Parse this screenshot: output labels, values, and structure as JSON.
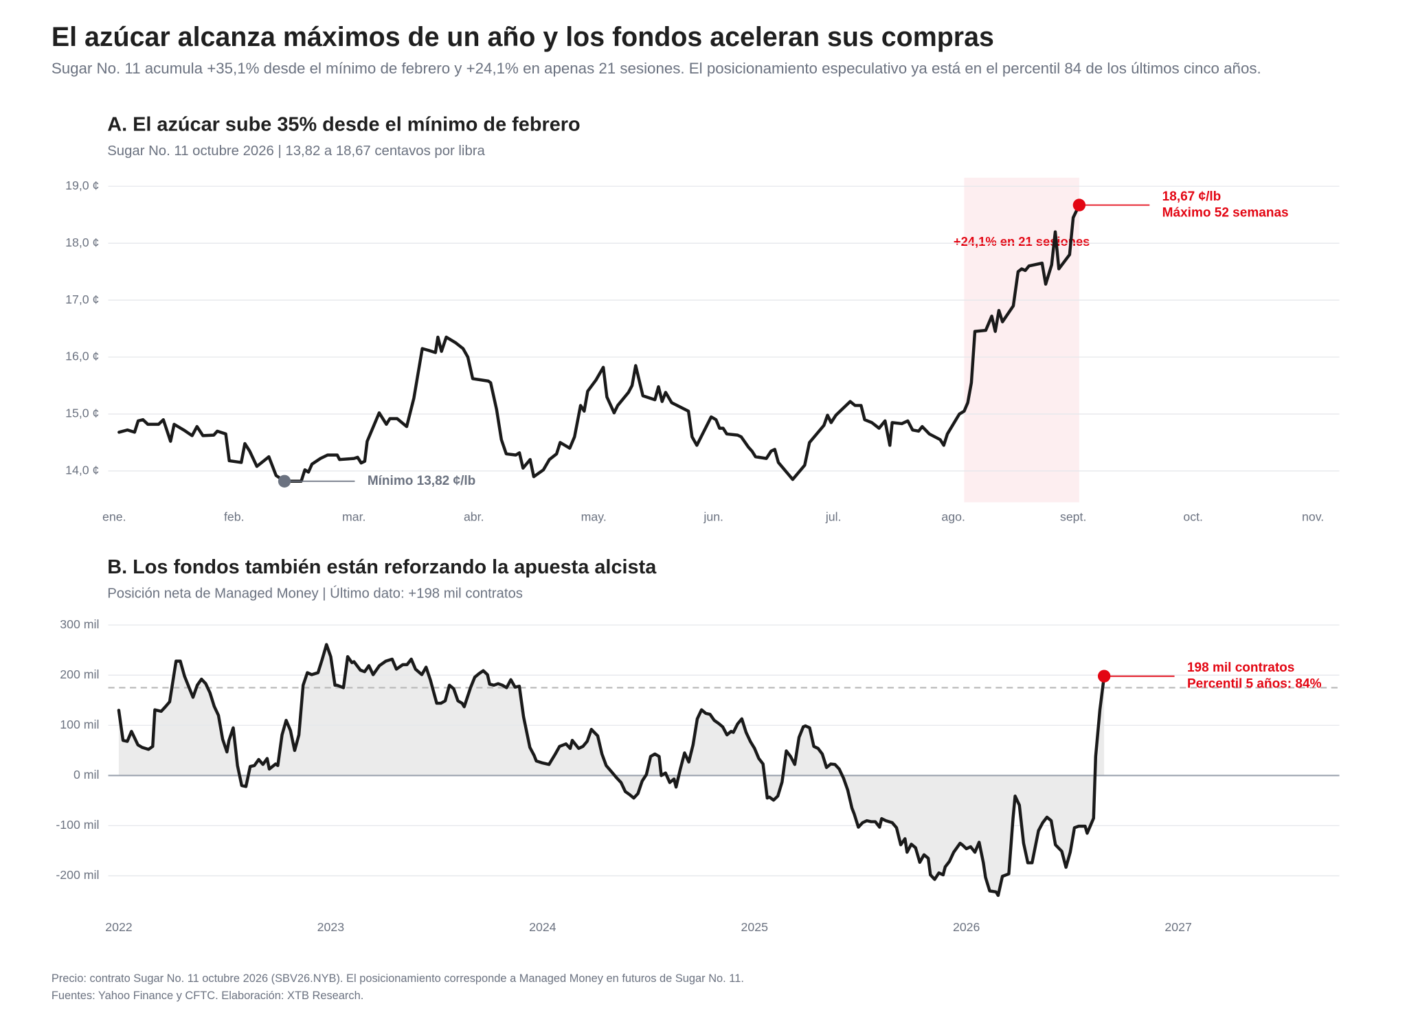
{
  "header": {
    "title": "El azúcar alcanza máximos de un año y los fondos aceleran sus compras",
    "subtitle": "Sugar No. 11 acumula +35,1% desde el mínimo de febrero y +24,1% en apenas 21 sesiones. El posicionamiento especulativo ya está en el percentil 84 de los últimos cinco años."
  },
  "footer": {
    "notes": [
      "Precio: contrato Sugar No. 11 octubre 2026 (SBV26.NYB). El posicionamiento corresponde a Managed Money en futuros de Sugar No. 11.",
      "Fuentes: Yahoo Finance y CFTC. Elaboración: XTB Research."
    ]
  },
  "chart_data": [
    {
      "type": "line",
      "title": "A. El azúcar sube 35% desde el mínimo de febrero",
      "subtitle": "Sugar No. 11 octubre 2026 | 13,82 a 18,67 centavos por libra",
      "color": "#1a1a1a",
      "grid": true,
      "xlim": [
        -0.05,
        10.22
      ],
      "xticks": [
        {
          "value": 0,
          "label": "ene."
        },
        {
          "value": 1,
          "label": "feb."
        },
        {
          "value": 2,
          "label": "mar."
        },
        {
          "value": 3,
          "label": "abr."
        },
        {
          "value": 4,
          "label": "may."
        },
        {
          "value": 5,
          "label": "jun."
        },
        {
          "value": 6,
          "label": "jul."
        },
        {
          "value": 7,
          "label": "ago."
        },
        {
          "value": 8,
          "label": "sept."
        },
        {
          "value": 9,
          "label": "oct."
        },
        {
          "value": 10,
          "label": "nov."
        }
      ],
      "ylim": [
        13.45,
        19.15
      ],
      "yticks": [
        {
          "value": 14,
          "label": "14,0 ¢"
        },
        {
          "value": 15,
          "label": "15,0 ¢"
        },
        {
          "value": 16,
          "label": "16,0 ¢"
        },
        {
          "value": 17,
          "label": "17,0 ¢"
        },
        {
          "value": 18,
          "label": "18,0 ¢"
        },
        {
          "value": 19,
          "label": "19,0 ¢"
        }
      ],
      "highlight": {
        "x": [
          7.09,
          8.05
        ],
        "color": "#fdeef0",
        "label": "+24,1% en 21 sesiones",
        "label_color": "#e30613"
      },
      "annotations": [
        {
          "x": 1.42,
          "y": 13.82,
          "color": "#6b7280",
          "label": [
            "Mínimo 13,82 ¢/lb"
          ]
        },
        {
          "x": 8.05,
          "y": 18.67,
          "color": "#e30613",
          "label": [
            "18,67 ¢/lb",
            "Máximo 52 semanas"
          ]
        }
      ],
      "x": [
        0.04,
        0.11,
        0.17,
        0.2,
        0.24,
        0.28,
        0.37,
        0.41,
        0.47,
        0.5,
        0.58,
        0.65,
        0.69,
        0.74,
        0.83,
        0.86,
        0.93,
        0.96,
        1.06,
        1.09,
        1.13,
        1.19,
        1.29,
        1.35,
        1.42,
        1.56,
        1.59,
        1.62,
        1.65,
        1.72,
        1.78,
        1.86,
        1.88,
        2.0,
        2.03,
        2.06,
        2.09,
        2.11,
        2.21,
        2.27,
        2.3,
        2.36,
        2.44,
        2.5,
        2.57,
        2.62,
        2.68,
        2.7,
        2.73,
        2.77,
        2.85,
        2.91,
        2.95,
        2.99,
        3.12,
        3.14,
        3.19,
        3.23,
        3.27,
        3.35,
        3.38,
        3.41,
        3.47,
        3.5,
        3.58,
        3.63,
        3.69,
        3.72,
        3.8,
        3.84,
        3.89,
        3.92,
        3.95,
        4.02,
        4.08,
        4.11,
        4.17,
        4.2,
        4.29,
        4.32,
        4.35,
        4.41,
        4.51,
        4.54,
        4.57,
        4.6,
        4.65,
        4.79,
        4.82,
        4.86,
        4.98,
        5.02,
        5.05,
        5.08,
        5.11,
        5.2,
        5.23,
        5.29,
        5.32,
        5.35,
        5.44,
        5.48,
        5.51,
        5.54,
        5.66,
        5.7,
        5.76,
        5.8,
        5.86,
        5.92,
        5.95,
        5.98,
        6.02,
        6.14,
        6.18,
        6.23,
        6.26,
        6.32,
        6.35,
        6.38,
        6.43,
        6.47,
        6.49,
        6.57,
        6.62,
        6.66,
        6.71,
        6.74,
        6.8,
        6.89,
        6.92,
        6.95,
        7.05,
        7.09,
        7.12,
        7.15,
        7.18,
        7.27,
        7.32,
        7.35,
        7.38,
        7.41,
        7.5,
        7.54,
        7.57,
        7.6,
        7.63,
        7.74,
        7.77,
        7.82,
        7.85,
        7.88,
        7.97,
        8.0,
        8.05
      ],
      "values": [
        14.68,
        14.72,
        14.68,
        14.88,
        14.9,
        14.82,
        14.82,
        14.9,
        14.52,
        14.82,
        14.72,
        14.62,
        14.78,
        14.62,
        14.63,
        14.7,
        14.65,
        14.18,
        14.15,
        14.48,
        14.35,
        14.08,
        14.25,
        13.92,
        13.82,
        13.82,
        14.02,
        13.98,
        14.12,
        14.22,
        14.28,
        14.28,
        14.2,
        14.22,
        14.24,
        14.14,
        14.17,
        14.52,
        15.02,
        14.82,
        14.92,
        14.92,
        14.78,
        15.28,
        16.15,
        16.12,
        16.08,
        16.35,
        16.1,
        16.35,
        16.25,
        16.15,
        16.0,
        15.62,
        15.58,
        15.55,
        15.08,
        14.55,
        14.3,
        14.28,
        14.32,
        14.05,
        14.2,
        13.9,
        14.02,
        14.2,
        14.3,
        14.5,
        14.4,
        14.6,
        15.15,
        15.05,
        15.4,
        15.6,
        15.82,
        15.3,
        15.02,
        15.15,
        15.38,
        15.5,
        15.85,
        15.32,
        15.25,
        15.48,
        15.22,
        15.38,
        15.2,
        15.05,
        14.6,
        14.45,
        14.95,
        14.9,
        14.75,
        14.75,
        14.65,
        14.63,
        14.6,
        14.42,
        14.35,
        14.25,
        14.22,
        14.35,
        14.38,
        14.15,
        13.85,
        13.95,
        14.1,
        14.5,
        14.65,
        14.8,
        14.98,
        14.85,
        14.98,
        15.22,
        15.15,
        15.15,
        14.9,
        14.85,
        14.8,
        14.75,
        14.88,
        14.45,
        14.85,
        14.83,
        14.88,
        14.72,
        14.7,
        14.78,
        14.65,
        14.55,
        14.45,
        14.65,
        15.0,
        15.05,
        15.2,
        15.55,
        16.45,
        16.47,
        16.72,
        16.45,
        16.82,
        16.62,
        16.9,
        17.5,
        17.55,
        17.52,
        17.6,
        17.65,
        17.28,
        17.62,
        18.2,
        17.55,
        17.8,
        18.45,
        18.67
      ]
    },
    {
      "type": "line",
      "title": "B. Los fondos también están reforzando la apuesta alcista",
      "subtitle": "Posición neta de Managed Money | Último dato: +198 mil contratos",
      "color": "#1a1a1a",
      "fill": "#ebebeb",
      "grid": true,
      "xlim": [
        2021.95,
        2027.76
      ],
      "xticks": [
        2022,
        2023,
        2024,
        2025,
        2026,
        2027
      ],
      "ylim": [
        -255,
        320
      ],
      "yticks": [
        {
          "value": -200,
          "label": "-200 mil"
        },
        {
          "value": -100,
          "label": "-100 mil"
        },
        {
          "value": 0,
          "label": "0 mil"
        },
        {
          "value": 100,
          "label": "100 mil"
        },
        {
          "value": 200,
          "label": "200 mil"
        },
        {
          "value": 300,
          "label": "300 mil"
        }
      ],
      "reference": {
        "y": 175,
        "color": "#b8b8b8"
      },
      "annotations": [
        {
          "x": 2026.65,
          "y": 198,
          "color": "#e30613",
          "label": [
            "198 mil contratos",
            "Percentil 5 años: 84%"
          ]
        }
      ],
      "x": [
        2022.0,
        2022.02,
        2022.04,
        2022.06,
        2022.09,
        2022.11,
        2022.14,
        2022.16,
        2022.17,
        2022.2,
        2022.22,
        2022.24,
        2022.27,
        2022.29,
        2022.31,
        2022.35,
        2022.37,
        2022.39,
        2022.41,
        2022.43,
        2022.45,
        2022.47,
        2022.49,
        2022.51,
        2022.52,
        2022.54,
        2022.56,
        2022.58,
        2022.6,
        2022.62,
        2022.64,
        2022.66,
        2022.68,
        2022.7,
        2022.71,
        2022.74,
        2022.75,
        2022.77,
        2022.79,
        2022.81,
        2022.83,
        2022.85,
        2022.87,
        2022.89,
        2022.91,
        2022.94,
        2022.96,
        2022.98,
        2023.0,
        2023.02,
        2023.03,
        2023.06,
        2023.08,
        2023.1,
        2023.11,
        2023.14,
        2023.16,
        2023.18,
        2023.2,
        2023.23,
        2023.26,
        2023.29,
        2023.31,
        2023.34,
        2023.36,
        2023.38,
        2023.4,
        2023.43,
        2023.45,
        2023.47,
        2023.5,
        2023.52,
        2023.54,
        2023.56,
        2023.58,
        2023.6,
        2023.62,
        2023.63,
        2023.66,
        2023.68,
        2023.7,
        2023.72,
        2023.74,
        2023.75,
        2023.77,
        2023.79,
        2023.81,
        2023.83,
        2023.85,
        2023.87,
        2023.89,
        2023.91,
        2023.94,
        2023.96,
        2023.97,
        2024.0,
        2024.03,
        2024.06,
        2024.08,
        2024.11,
        2024.13,
        2024.14,
        2024.17,
        2024.19,
        2024.21,
        2024.23,
        2024.26,
        2024.28,
        2024.3,
        2024.33,
        2024.35,
        2024.37,
        2024.39,
        2024.41,
        2024.43,
        2024.45,
        2024.47,
        2024.49,
        2024.51,
        2024.53,
        2024.55,
        2024.56,
        2024.58,
        2024.6,
        2024.62,
        2024.63,
        2024.65,
        2024.67,
        2024.69,
        2024.71,
        2024.73,
        2024.75,
        2024.77,
        2024.79,
        2024.81,
        2024.83,
        2024.85,
        2024.87,
        2024.89,
        2024.9,
        2024.92,
        2024.94,
        2024.96,
        2024.98,
        2025.0,
        2025.02,
        2025.04,
        2025.06,
        2025.07,
        2025.09,
        2025.11,
        2025.13,
        2025.15,
        2025.17,
        2025.19,
        2025.21,
        2025.23,
        2025.24,
        2025.26,
        2025.28,
        2025.3,
        2025.32,
        2025.34,
        2025.36,
        2025.38,
        2025.4,
        2025.42,
        2025.44,
        2025.46,
        2025.47,
        2025.49,
        2025.51,
        2025.53,
        2025.55,
        2025.57,
        2025.59,
        2025.6,
        2025.62,
        2025.65,
        2025.67,
        2025.69,
        2025.71,
        2025.72,
        2025.74,
        2025.76,
        2025.78,
        2025.8,
        2025.82,
        2025.83,
        2025.85,
        2025.87,
        2025.89,
        2025.9,
        2025.92,
        2025.94,
        2025.97,
        2025.98,
        2026.0,
        2026.02,
        2026.04,
        2026.06,
        2026.08,
        2026.09,
        2026.11,
        2026.14,
        2026.15,
        2026.17,
        2026.2,
        2026.22,
        2026.23,
        2026.25,
        2026.27,
        2026.29,
        2026.31,
        2026.34,
        2026.36,
        2026.38,
        2026.4,
        2026.42,
        2026.45,
        2026.47,
        2026.49,
        2026.51,
        2026.53,
        2026.56,
        2026.57,
        2026.6,
        2026.61,
        2026.63,
        2026.65
      ],
      "values": [
        130,
        70,
        68,
        88,
        61,
        56,
        52,
        58,
        131,
        128,
        137,
        147,
        228,
        228,
        198,
        156,
        180,
        192,
        183,
        165,
        138,
        120,
        72,
        47,
        70,
        95,
        20,
        -20,
        -22,
        18,
        20,
        32,
        22,
        34,
        13,
        23,
        20,
        81,
        110,
        90,
        50,
        81,
        180,
        205,
        201,
        205,
        232,
        261,
        237,
        180,
        180,
        175,
        237,
        225,
        227,
        210,
        207,
        219,
        201,
        219,
        228,
        232,
        212,
        221,
        221,
        232,
        212,
        201,
        216,
        191,
        144,
        144,
        149,
        180,
        173,
        149,
        144,
        137,
        175,
        196,
        203,
        209,
        201,
        182,
        180,
        183,
        180,
        175,
        191,
        176,
        178,
        117,
        56,
        40,
        29,
        25,
        22,
        43,
        58,
        63,
        54,
        70,
        54,
        58,
        68,
        92,
        79,
        43,
        20,
        5,
        -5,
        -14,
        -32,
        -38,
        -45,
        -36,
        -11,
        2,
        38,
        43,
        38,
        0,
        5,
        -14,
        -7,
        -23,
        13,
        45,
        27,
        61,
        113,
        131,
        124,
        122,
        110,
        104,
        97,
        81,
        88,
        86,
        103,
        113,
        86,
        68,
        54,
        34,
        23,
        -45,
        -43,
        -49,
        -41,
        -13,
        49,
        38,
        22,
        76,
        97,
        99,
        95,
        58,
        54,
        43,
        16,
        23,
        22,
        13,
        -5,
        -29,
        -65,
        -76,
        -103,
        -94,
        -90,
        -92,
        -92,
        -103,
        -86,
        -90,
        -94,
        -104,
        -138,
        -126,
        -153,
        -137,
        -144,
        -173,
        -158,
        -165,
        -198,
        -207,
        -194,
        -198,
        -182,
        -171,
        -153,
        -135,
        -138,
        -146,
        -142,
        -153,
        -133,
        -174,
        -203,
        -230,
        -232,
        -239,
        -201,
        -196,
        -85,
        -41,
        -59,
        -135,
        -174,
        -174,
        -110,
        -94,
        -83,
        -90,
        -138,
        -151,
        -183,
        -153,
        -104,
        -101,
        -101,
        -115,
        -85,
        38,
        131,
        198
      ]
    }
  ]
}
